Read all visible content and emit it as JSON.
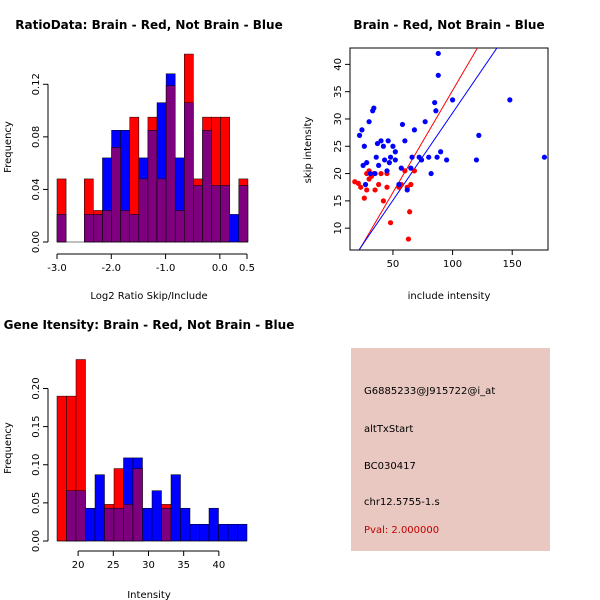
{
  "colors": {
    "red": "#ff0000",
    "blue": "#0000ff",
    "overlap": "#7f007f",
    "info_bg": "#e8c8c0",
    "pval": "#c00000"
  },
  "info_panel": {
    "probe_id": "G6885233@J915722@i_at",
    "event_type": "altTxStart",
    "accession": "BC030417",
    "cluster": "chr12.5755-1.s",
    "pval": "Pval: 2.000000"
  },
  "chart_data": [
    {
      "id": "ratio",
      "type": "bar",
      "title": "RatioData: Brain - Red, Not Brain - Blue",
      "xlabel": "Log2 Ratio Skip/Include",
      "ylabel": "Frequency",
      "xlim": [
        -3.0,
        0.5
      ],
      "ylim": [
        0,
        0.14
      ],
      "xticks": [
        "-3.0",
        "-2.0",
        "-1.0",
        "0.0",
        "0.5"
      ],
      "xtick_values": [
        -3.0,
        -2.0,
        -1.0,
        0.0,
        0.5
      ],
      "yticks": [
        "0.00",
        "0.04",
        "0.08",
        "0.12"
      ],
      "ytick_values": [
        0.0,
        0.04,
        0.08,
        0.12
      ],
      "bin_width": 0.1675,
      "bin_start": -3.0,
      "series": [
        {
          "name": "Brain",
          "color": "red",
          "values": [
            0.048,
            0,
            0,
            0.048,
            0.024,
            0.024,
            0.072,
            0.024,
            0.095,
            0.048,
            0.095,
            0.048,
            0.119,
            0.024,
            0.143,
            0.048,
            0.095,
            0.095,
            0.095,
            0,
            0.048
          ]
        },
        {
          "name": "Not Brain",
          "color": "blue",
          "values": [
            0.021,
            0,
            0,
            0.021,
            0.021,
            0.064,
            0.085,
            0.085,
            0.021,
            0.064,
            0.085,
            0.106,
            0.128,
            0.064,
            0.106,
            0.043,
            0.085,
            0.043,
            0.043,
            0.021,
            0.043
          ]
        }
      ]
    },
    {
      "id": "scatter",
      "type": "scatter",
      "title": "Brain - Red, Not Brain - Blue",
      "xlabel": "include intensity",
      "ylabel": "skip intensity",
      "xlim": [
        14,
        180
      ],
      "ylim": [
        6,
        43
      ],
      "xticks": [
        "50",
        "100",
        "150"
      ],
      "xtick_values": [
        50,
        100,
        150
      ],
      "yticks": [
        "10",
        "15",
        "20",
        "25",
        "30",
        "35",
        "40"
      ],
      "ytick_values": [
        10,
        15,
        20,
        25,
        30,
        35,
        40
      ],
      "series": [
        {
          "name": "Brain",
          "color": "red",
          "points": [
            [
              18,
              18.5
            ],
            [
              21,
              18.2
            ],
            [
              23,
              17.5
            ],
            [
              26,
              15.5
            ],
            [
              28,
              17
            ],
            [
              28,
              20
            ],
            [
              30,
              20.5
            ],
            [
              30,
              19
            ],
            [
              32,
              19.5
            ],
            [
              34,
              20
            ],
            [
              35,
              17
            ],
            [
              38,
              18
            ],
            [
              40,
              20
            ],
            [
              42,
              15
            ],
            [
              45,
              20
            ],
            [
              45,
              17.5
            ],
            [
              48,
              11
            ],
            [
              55,
              17.5
            ],
            [
              57,
              18
            ],
            [
              60,
              20.5
            ],
            [
              62,
              17.5
            ],
            [
              63,
              8
            ],
            [
              64,
              13
            ],
            [
              65,
              18
            ],
            [
              68,
              20.5
            ]
          ]
        },
        {
          "name": "Not Brain",
          "color": "blue",
          "points": [
            [
              22,
              27
            ],
            [
              24,
              28
            ],
            [
              25,
              21.5
            ],
            [
              26,
              25
            ],
            [
              27,
              18
            ],
            [
              28,
              22
            ],
            [
              30,
              29.5
            ],
            [
              31,
              20
            ],
            [
              33,
              31.5
            ],
            [
              34,
              32
            ],
            [
              35,
              20
            ],
            [
              36,
              23
            ],
            [
              37,
              25.5
            ],
            [
              38,
              21.5
            ],
            [
              40,
              26
            ],
            [
              42,
              25
            ],
            [
              43,
              22.5
            ],
            [
              45,
              20.5
            ],
            [
              46,
              26
            ],
            [
              47,
              22
            ],
            [
              48,
              23
            ],
            [
              50,
              25
            ],
            [
              52,
              24
            ],
            [
              52,
              22.5
            ],
            [
              55,
              18
            ],
            [
              57,
              21
            ],
            [
              58,
              29
            ],
            [
              60,
              26
            ],
            [
              62,
              17
            ],
            [
              65,
              21
            ],
            [
              66,
              23
            ],
            [
              68,
              28
            ],
            [
              72,
              23
            ],
            [
              74,
              22.5
            ],
            [
              77,
              29.5
            ],
            [
              80,
              23
            ],
            [
              82,
              20
            ],
            [
              85,
              33
            ],
            [
              86,
              31.5
            ],
            [
              87,
              23
            ],
            [
              88,
              38
            ],
            [
              88,
              42
            ],
            [
              90,
              24
            ],
            [
              95,
              22.5
            ],
            [
              100,
              33.5
            ],
            [
              120,
              22.5
            ],
            [
              122,
              27
            ],
            [
              148,
              33.5
            ],
            [
              177,
              23
            ]
          ]
        }
      ],
      "fit_lines": [
        {
          "name": "Brain",
          "color": "red",
          "from": [
            14,
            3.1
          ],
          "to": [
            180,
            65.1
          ]
        },
        {
          "name": "Not Brain",
          "color": "blue",
          "from": [
            14,
            3.6
          ],
          "to": [
            180,
            56.7
          ]
        }
      ]
    },
    {
      "id": "intensity",
      "type": "bar",
      "title": "Gene Itensity: Brain - Red, Not Brain - Blue",
      "xlabel": "Intensity",
      "ylabel": "Frequency",
      "xlim": [
        17,
        44
      ],
      "ylim": [
        0,
        0.24
      ],
      "xticks": [
        "20",
        "25",
        "30",
        "35",
        "40"
      ],
      "xtick_values": [
        20,
        25,
        30,
        35,
        40
      ],
      "yticks": [
        "0.00",
        "0.05",
        "0.10",
        "0.15",
        "0.20"
      ],
      "ytick_values": [
        0.0,
        0.05,
        0.1,
        0.15,
        0.2
      ],
      "bin_width": 1.35,
      "bin_start": 17.0,
      "series": [
        {
          "name": "Brain",
          "color": "red",
          "values": [
            0.19,
            0.19,
            0.238,
            0,
            0,
            0.048,
            0.095,
            0.048,
            0.095,
            0,
            0,
            0.048,
            0,
            0,
            0,
            0,
            0,
            0,
            0,
            0
          ]
        },
        {
          "name": "Not Brain",
          "color": "blue",
          "values": [
            0,
            0.066,
            0.066,
            0.043,
            0.087,
            0.043,
            0.043,
            0.109,
            0.109,
            0.043,
            0.066,
            0.043,
            0.087,
            0.043,
            0.022,
            0.022,
            0.043,
            0.022,
            0.022,
            0.022
          ]
        }
      ]
    }
  ]
}
